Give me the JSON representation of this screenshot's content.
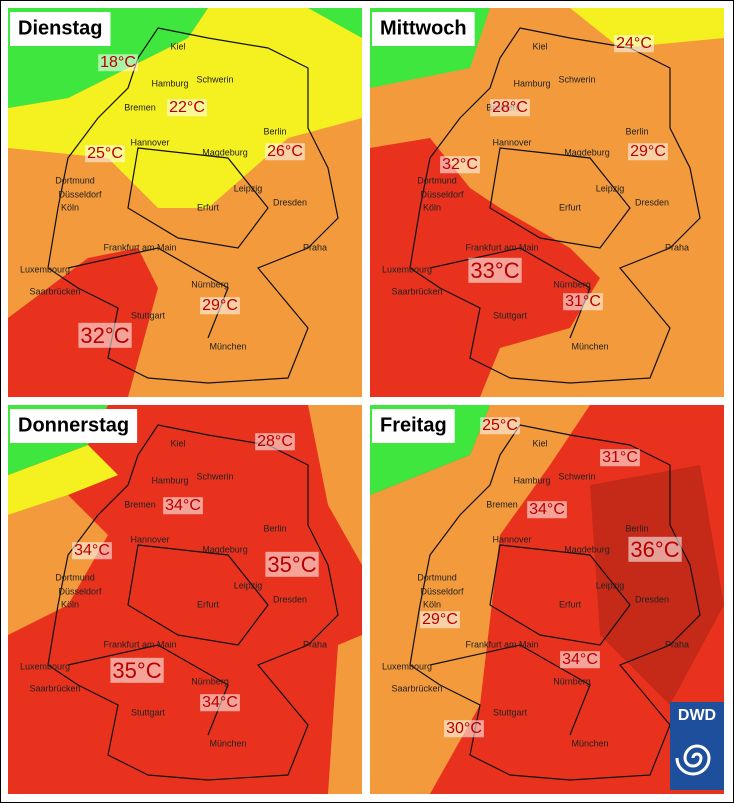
{
  "panels": [
    {
      "day": "Dienstag",
      "temps": [
        "18°C",
        "22°C",
        "25°C",
        "26°C",
        "29°C",
        "32°C"
      ]
    },
    {
      "day": "Mittwoch",
      "temps": [
        "24°C",
        "28°C",
        "32°C",
        "29°C",
        "33°C",
        "31°C"
      ]
    },
    {
      "day": "Donnerstag",
      "temps": [
        "28°C",
        "34°C",
        "34°C",
        "35°C",
        "35°C",
        "34°C"
      ]
    },
    {
      "day": "Freitag",
      "temps": [
        "25°C",
        "31°C",
        "34°C",
        "36°C",
        "29°C",
        "34°C",
        "30°C"
      ]
    }
  ],
  "cities": [
    "Kiel",
    "Hamburg",
    "Schwerin",
    "Bremen",
    "Hannover",
    "Berlin",
    "Magdeburg",
    "Dortmund",
    "Düsseldorf",
    "Köln",
    "Leipzig",
    "Dresden",
    "Erfurt",
    "Frankfurt am Main",
    "Praha",
    "Luxembourg",
    "Saarbrücken",
    "Nürnberg",
    "Stuttgart",
    "München"
  ],
  "logo": "DWD"
}
